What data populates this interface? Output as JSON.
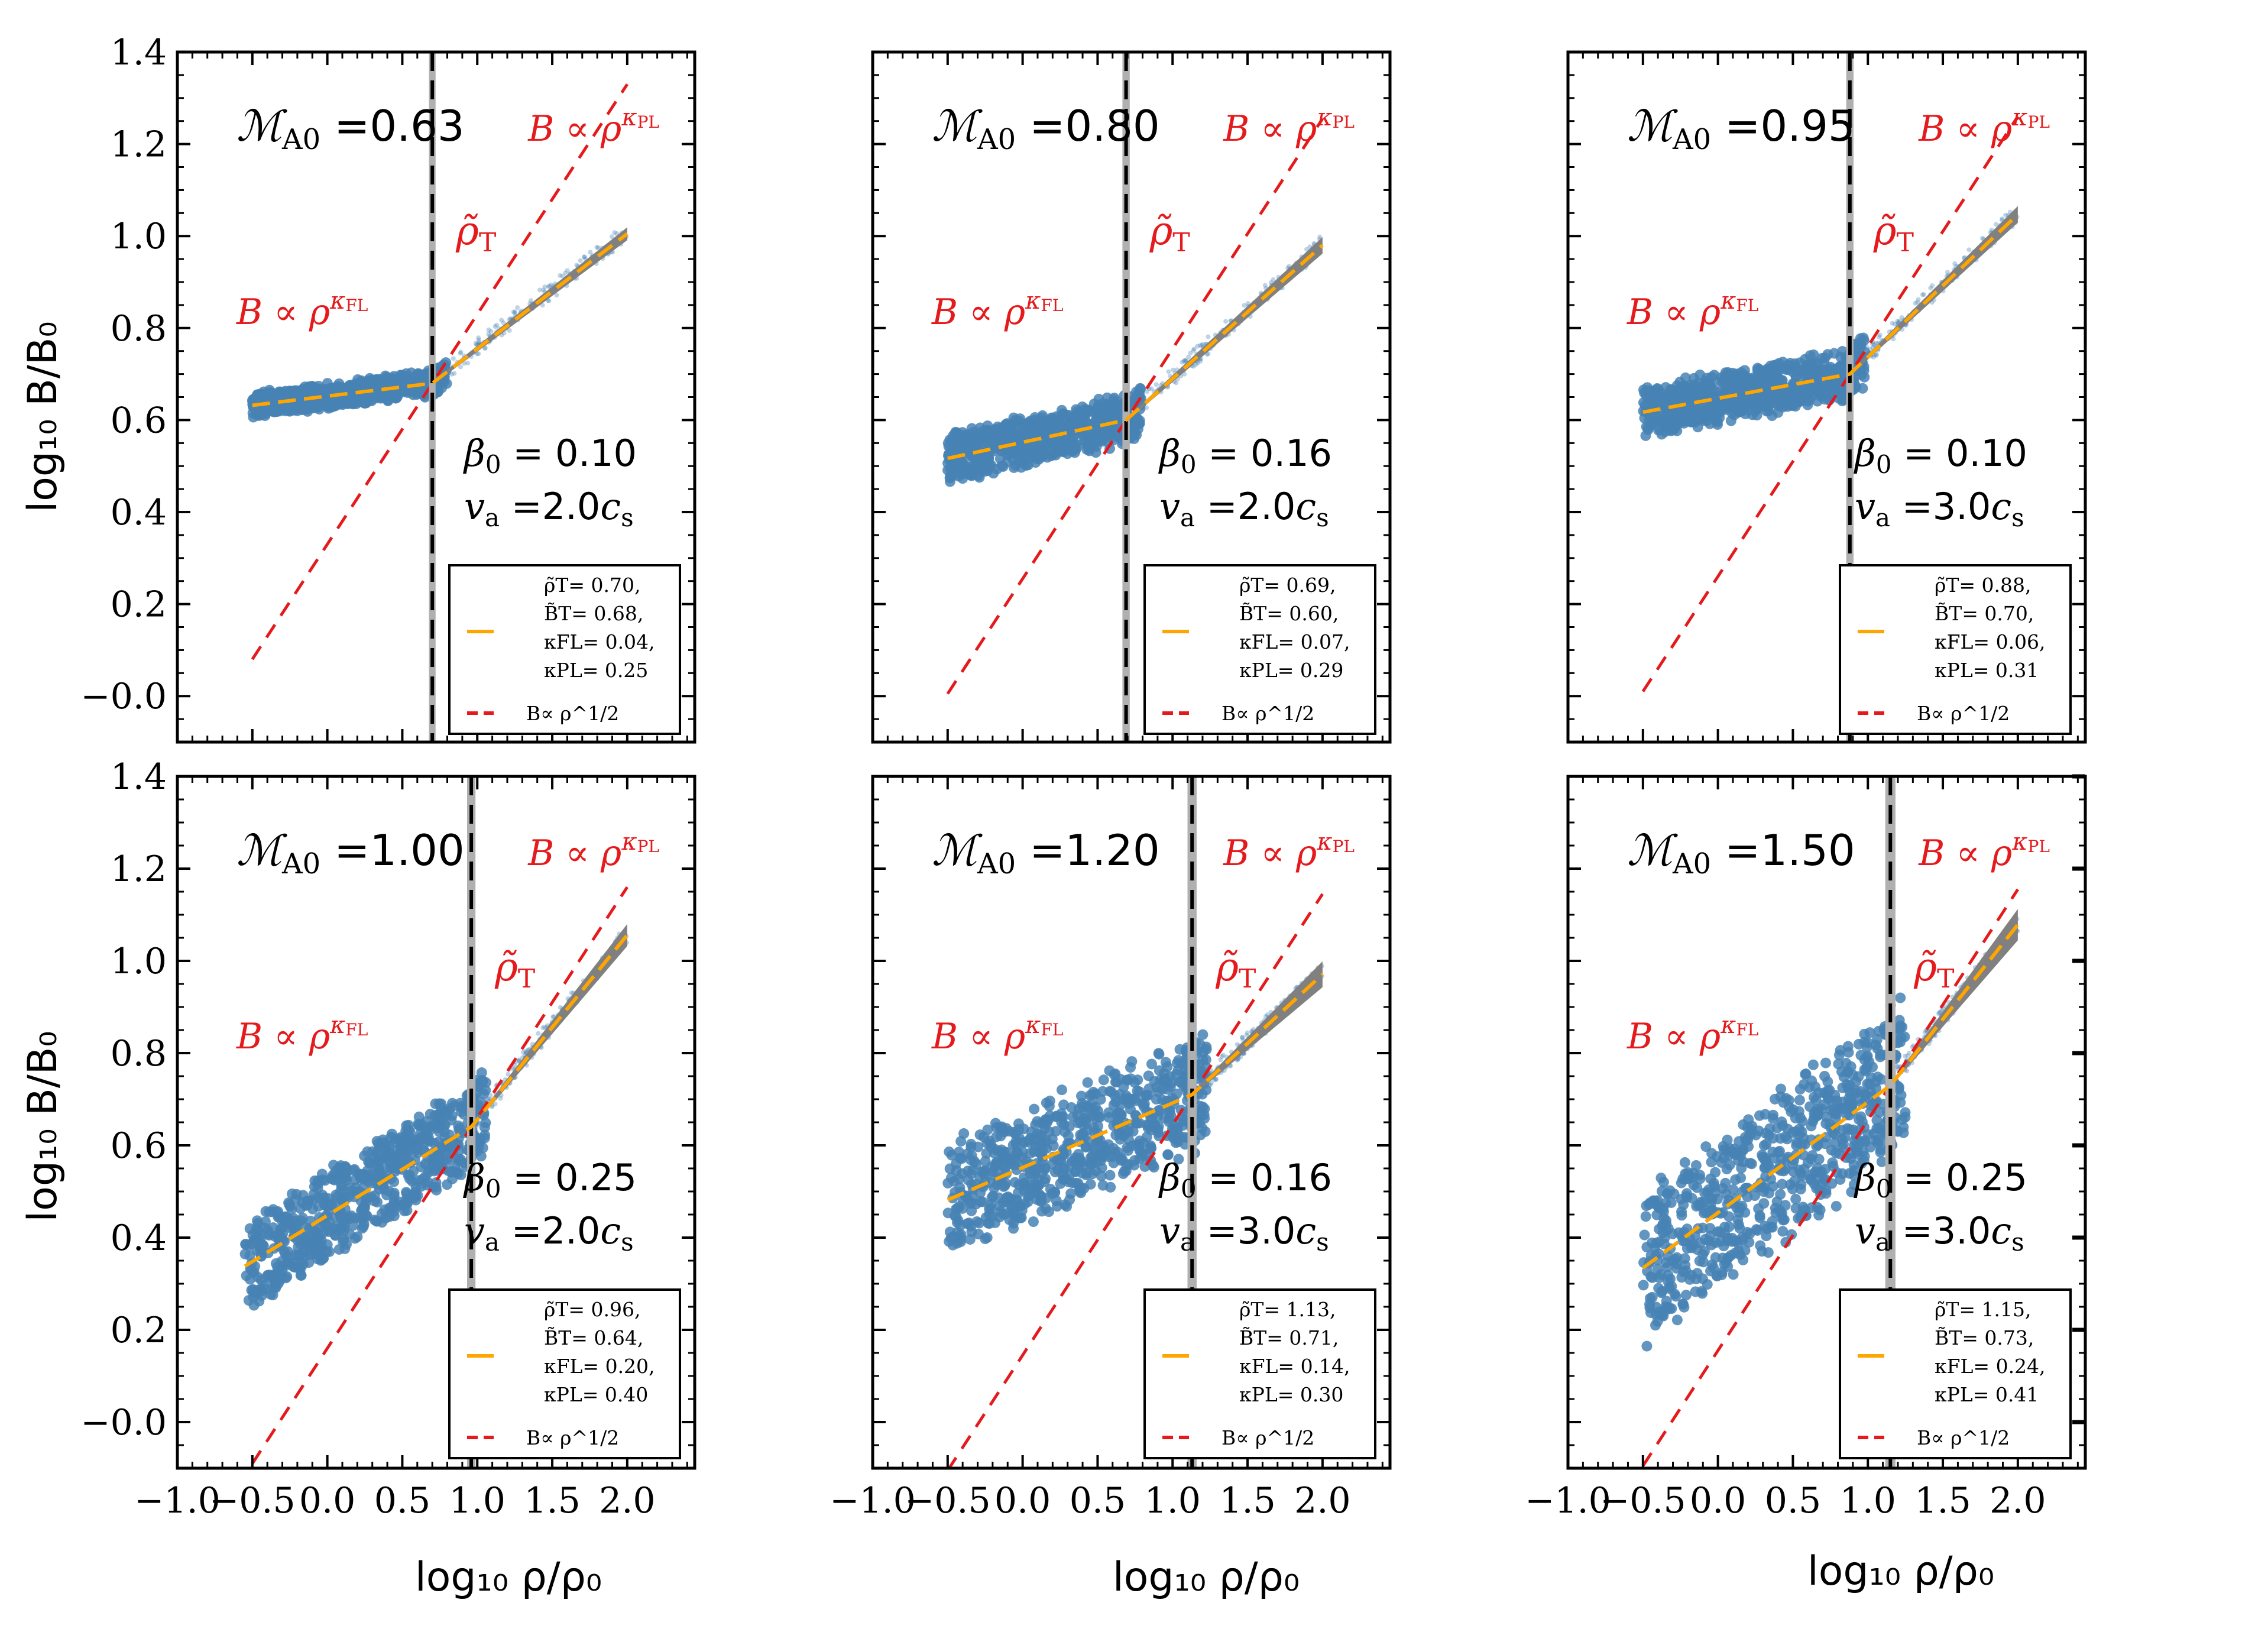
{
  "figure": {
    "ylabel": "log₁₀ B/B₀",
    "xlabel": "log₁₀ ρ/ρ₀",
    "xticks": [
      "−1.0",
      "−0.5",
      "0.0",
      "0.5",
      "1.0",
      "1.5",
      "2.0"
    ],
    "yticks": [
      "−0.0",
      "0.2",
      "0.4",
      "0.6",
      "0.8",
      "1.0",
      "1.2",
      "1.4"
    ],
    "label_kappa_fl": "B ∝ ρ^κFL",
    "label_kappa_pl": "B ∝ ρ^κPL",
    "label_rho_t": "ρ̃T",
    "legend_ref": "B∝ ρ^1/2"
  },
  "colors": {
    "scatter": "#4682b4",
    "fit": "#ffa500",
    "ref": "#e41a1c",
    "band": "#808080"
  },
  "chart_data": [
    {
      "type": "scatter",
      "xlim": [
        -1.0,
        2.45
      ],
      "ylim": [
        -0.1,
        1.4
      ],
      "mach": "0.63",
      "beta": "0.10",
      "va": "2.0",
      "rho_t": 0.7,
      "b_t": 0.68,
      "kappa_fl": 0.04,
      "kappa_pl": 0.25,
      "legend": [
        "ρ̃T= 0.70,",
        "B̃T= 0.68,",
        "κFL= 0.04,",
        "κPL= 0.25"
      ],
      "x_min": -0.5,
      "x_max": 2.0,
      "spread": 0.02
    },
    {
      "type": "scatter",
      "xlim": [
        -1.0,
        2.45
      ],
      "ylim": [
        -0.1,
        1.4
      ],
      "mach": "0.80",
      "beta": "0.16",
      "va": "2.0",
      "rho_t": 0.69,
      "b_t": 0.6,
      "kappa_fl": 0.07,
      "kappa_pl": 0.29,
      "legend": [
        "ρ̃T= 0.69,",
        "B̃T= 0.60,",
        "κFL= 0.07,",
        "κPL= 0.29"
      ],
      "x_min": -0.5,
      "x_max": 2.0,
      "spread": 0.04
    },
    {
      "type": "scatter",
      "xlim": [
        -1.0,
        2.45
      ],
      "ylim": [
        -0.1,
        1.4
      ],
      "mach": "0.95",
      "beta": "0.10",
      "va": "3.0",
      "rho_t": 0.88,
      "b_t": 0.7,
      "kappa_fl": 0.06,
      "kappa_pl": 0.31,
      "legend": [
        "ρ̃T= 0.88,",
        "B̃T= 0.70,",
        "κFL= 0.06,",
        "κPL= 0.31"
      ],
      "x_min": -0.5,
      "x_max": 2.0,
      "spread": 0.04
    },
    {
      "type": "scatter",
      "xlim": [
        -1.0,
        2.45
      ],
      "ylim": [
        -0.1,
        1.4
      ],
      "mach": "1.00",
      "beta": "0.25",
      "va": "2.0",
      "rho_t": 0.96,
      "b_t": 0.64,
      "kappa_fl": 0.2,
      "kappa_pl": 0.4,
      "legend": [
        "ρ̃T= 0.96,",
        "B̃T= 0.64,",
        "κFL= 0.20,",
        "κPL= 0.40"
      ],
      "x_min": -0.55,
      "x_max": 2.0,
      "spread": 0.07
    },
    {
      "type": "scatter",
      "xlim": [
        -1.0,
        2.45
      ],
      "ylim": [
        -0.1,
        1.4
      ],
      "mach": "1.20",
      "beta": "0.16",
      "va": "3.0",
      "rho_t": 1.13,
      "b_t": 0.71,
      "kappa_fl": 0.14,
      "kappa_pl": 0.3,
      "legend": [
        "ρ̃T= 1.13,",
        "B̃T= 0.71,",
        "κFL= 0.14,",
        "κPL= 0.30"
      ],
      "x_min": -0.5,
      "x_max": 2.0,
      "spread": 0.09
    },
    {
      "type": "scatter",
      "xlim": [
        -1.0,
        2.45
      ],
      "ylim": [
        -0.1,
        1.4
      ],
      "mach": "1.50",
      "beta": "0.25",
      "va": "3.0",
      "rho_t": 1.15,
      "b_t": 0.73,
      "kappa_fl": 0.24,
      "kappa_pl": 0.41,
      "legend": [
        "ρ̃T= 1.15,",
        "B̃T= 0.73,",
        "κFL= 0.24,",
        "κPL= 0.41"
      ],
      "x_min": -0.5,
      "x_max": 2.0,
      "spread": 0.12
    }
  ]
}
